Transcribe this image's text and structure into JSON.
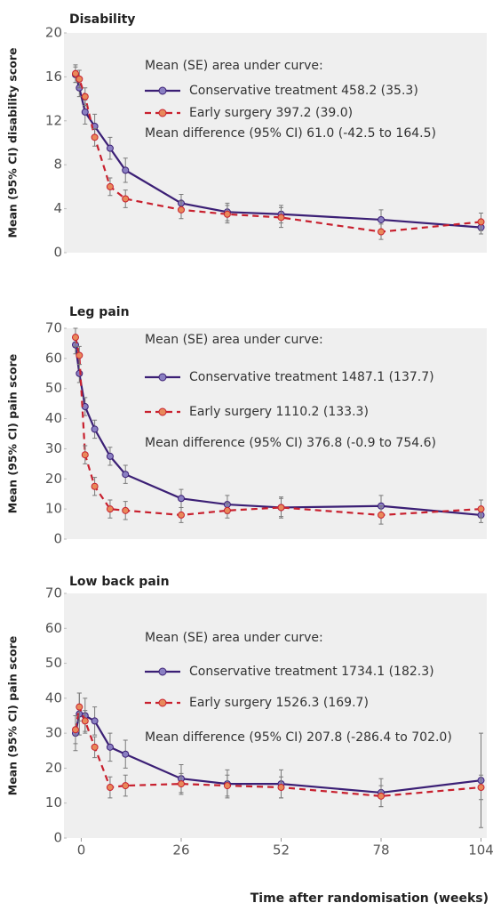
{
  "chart_data": [
    {
      "type": "line",
      "title": "Disability",
      "ylabel": "Mean (95% CI) disability score",
      "annotations": [
        "Mean (SE) area under curve:",
        "Mean difference (95% CI) 61.0 (-42.5 to 164.5)"
      ],
      "x": [
        -1.5,
        -0.5,
        1,
        3.5,
        7.5,
        11.5,
        26,
        38,
        52,
        78,
        104
      ],
      "xlim": [
        -4.5,
        105.5
      ],
      "ylim": [
        0,
        20
      ],
      "yticks": [
        0,
        4,
        8,
        12,
        16,
        20
      ],
      "grid": false,
      "series": [
        {
          "name": "Conservative treatment 458.2 (35.3)",
          "color": "#3b1f75",
          "marker_color": "#8a7fc2",
          "dashed": false,
          "values": [
            16.2,
            15.0,
            12.8,
            11.5,
            9.5,
            7.5,
            4.5,
            3.7,
            3.5,
            3.0,
            2.3
          ],
          "errors": [
            0.7,
            0.8,
            1.1,
            1.1,
            1.0,
            1.1,
            0.8,
            0.8,
            0.8,
            0.9,
            0.6
          ]
        },
        {
          "name": "Early surgery 397.2 (39.0)",
          "color": "#c8202e",
          "marker_color": "#e8895a",
          "dashed": true,
          "values": [
            16.3,
            15.8,
            14.2,
            10.5,
            6.0,
            4.9,
            3.9,
            3.5,
            3.2,
            1.9,
            2.8
          ],
          "errors": [
            0.8,
            0.8,
            0.8,
            0.8,
            0.8,
            0.8,
            0.8,
            0.8,
            0.9,
            0.7,
            0.8
          ]
        }
      ]
    },
    {
      "type": "line",
      "title": "Leg pain",
      "ylabel": "Mean (95% CI) pain score",
      "annotations": [
        "Mean (SE) area under curve:",
        "Mean difference (95% CI) 376.8 (-0.9 to 754.6)"
      ],
      "x": [
        -1.5,
        -0.5,
        1,
        3.5,
        7.5,
        11.5,
        26,
        38,
        52,
        78,
        104
      ],
      "xlim": [
        -4.5,
        105.5
      ],
      "ylim": [
        0,
        70
      ],
      "yticks": [
        0,
        10,
        20,
        30,
        40,
        50,
        60,
        70
      ],
      "grid": false,
      "series": [
        {
          "name": "Conservative treatment 1487.1 (137.7)",
          "color": "#3b1f75",
          "marker_color": "#8a7fc2",
          "dashed": false,
          "values": [
            64.5,
            55,
            44,
            36.5,
            27.5,
            21.5,
            13.5,
            11.5,
            10.5,
            11,
            8
          ],
          "errors": [
            3,
            3,
            3,
            3,
            3,
            3,
            3,
            3,
            3,
            3.5,
            2.5
          ]
        },
        {
          "name": "Early surgery 1110.2 (133.3)",
          "color": "#c8202e",
          "marker_color": "#e8895a",
          "dashed": true,
          "values": [
            67,
            61,
            28,
            17.5,
            10,
            9.5,
            8,
            9.5,
            10.5,
            8,
            10
          ],
          "errors": [
            3,
            3,
            3,
            3,
            3,
            3,
            2.5,
            2.5,
            3.5,
            3,
            3
          ]
        }
      ]
    },
    {
      "type": "line",
      "title": "Low back pain",
      "ylabel": "Mean (95% CI) pain score",
      "xlabel": "Time after randomisation (weeks)",
      "annotations": [
        "Mean (SE) area under curve:",
        "Mean difference (95% CI) 207.8 (-286.4 to 702.0)"
      ],
      "x": [
        -1.5,
        -0.5,
        1,
        3.5,
        7.5,
        11.5,
        26,
        38,
        52,
        78,
        104
      ],
      "xlim": [
        -4.5,
        105.5
      ],
      "xticks": [
        0,
        26,
        52,
        78,
        104
      ],
      "ylim": [
        0,
        70
      ],
      "yticks": [
        0,
        10,
        20,
        30,
        40,
        50,
        60,
        70
      ],
      "grid": false,
      "series": [
        {
          "name": "Conservative treatment 1734.1 (182.3)",
          "color": "#3b1f75",
          "marker_color": "#8a7fc2",
          "dashed": false,
          "values": [
            30,
            35.5,
            35,
            33.5,
            26,
            24,
            17,
            15.5,
            15.5,
            13,
            16.5
          ],
          "errors": [
            5,
            6,
            5,
            4,
            4,
            4,
            4,
            4,
            4,
            4,
            13.5
          ]
        },
        {
          "name": "Early surgery 1526.3 (169.7)",
          "color": "#c8202e",
          "marker_color": "#e8895a",
          "dashed": true,
          "values": [
            31,
            37.5,
            33.5,
            26,
            14.5,
            15,
            15.5,
            15,
            14.5,
            12,
            14.5
          ],
          "errors": [
            4,
            4,
            3,
            3,
            3,
            3,
            3,
            3,
            3,
            3,
            3.5
          ]
        }
      ]
    }
  ]
}
